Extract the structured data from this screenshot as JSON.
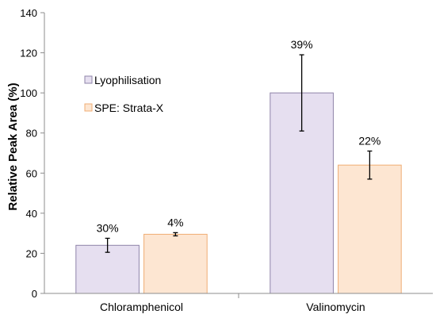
{
  "chart_data": {
    "type": "bar",
    "ylabel": "Relative Peak Area (%)",
    "xlabel": "",
    "ylim": [
      0,
      140
    ],
    "yticks": [
      0,
      20,
      40,
      60,
      80,
      100,
      120,
      140
    ],
    "categories": [
      "Chloramphenicol",
      "Valinomycin"
    ],
    "series": [
      {
        "name": "Lyophilisation",
        "fill": "#e6dff0",
        "stroke": "#8f84a9",
        "values": [
          24,
          100
        ],
        "error": [
          3.5,
          19
        ],
        "labels": [
          "30%",
          "39%"
        ]
      },
      {
        "name": "SPE: Strata-X",
        "fill": "#fde6d2",
        "stroke": "#f0ad74",
        "values": [
          29.5,
          64
        ],
        "error": [
          0.8,
          7
        ],
        "labels": [
          "4%",
          "22%"
        ]
      }
    ],
    "legend_position": "top-left",
    "grid": false
  }
}
